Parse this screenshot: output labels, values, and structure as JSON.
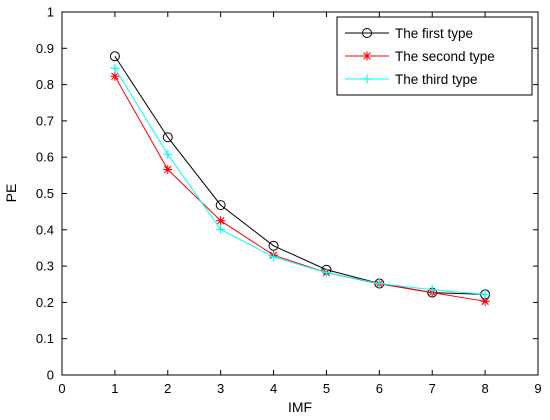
{
  "chart_data": {
    "type": "line",
    "title": "",
    "xlabel": "IMF",
    "ylabel": "PE",
    "xlim": [
      0,
      9
    ],
    "ylim": [
      0,
      1
    ],
    "x_ticks": [
      "0",
      "1",
      "2",
      "3",
      "4",
      "5",
      "6",
      "7",
      "8",
      "9"
    ],
    "y_ticks": [
      "0",
      "0.1",
      "0.2",
      "0.3",
      "0.4",
      "0.5",
      "0.6",
      "0.7",
      "0.8",
      "0.9",
      "1"
    ],
    "grid": false,
    "legend_position": "top-right",
    "x": [
      1,
      2,
      3,
      4,
      5,
      6,
      7,
      8
    ],
    "series": [
      {
        "name": "The first type",
        "color": "#000000",
        "marker": "circle",
        "values": [
          0.878,
          0.655,
          0.468,
          0.356,
          0.29,
          0.252,
          0.227,
          0.222
        ]
      },
      {
        "name": "The second type",
        "color": "#ff0000",
        "marker": "asterisk",
        "values": [
          0.823,
          0.566,
          0.425,
          0.33,
          0.282,
          0.251,
          0.227,
          0.203
        ]
      },
      {
        "name": "The third type",
        "color": "#00ffff",
        "marker": "plus",
        "values": [
          0.845,
          0.608,
          0.401,
          0.325,
          0.282,
          0.252,
          0.235,
          0.222
        ]
      }
    ]
  }
}
